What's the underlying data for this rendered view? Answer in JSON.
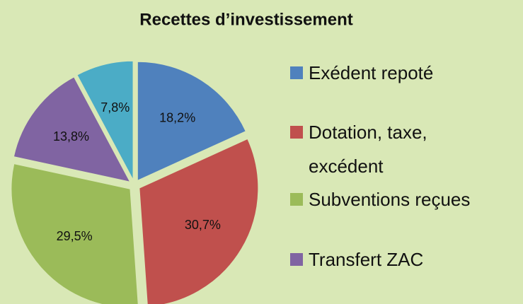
{
  "chart_data": {
    "type": "pie",
    "title": "Recettes  d’investissement",
    "categories": [
      "Exédent repoté",
      "Dotation, taxe, excédent",
      "Subventions reçues",
      "Transfert ZAC",
      null
    ],
    "values": [
      18.2,
      30.7,
      29.5,
      13.8,
      7.8
    ],
    "value_labels": [
      "18,2%",
      "30,7%",
      "29,5%",
      "13,8%",
      "7,8%"
    ],
    "colors": [
      "#4f81bd",
      "#c0504d",
      "#9bbb59",
      "#8064a2",
      "#4bacc6"
    ],
    "legend": "right"
  }
}
